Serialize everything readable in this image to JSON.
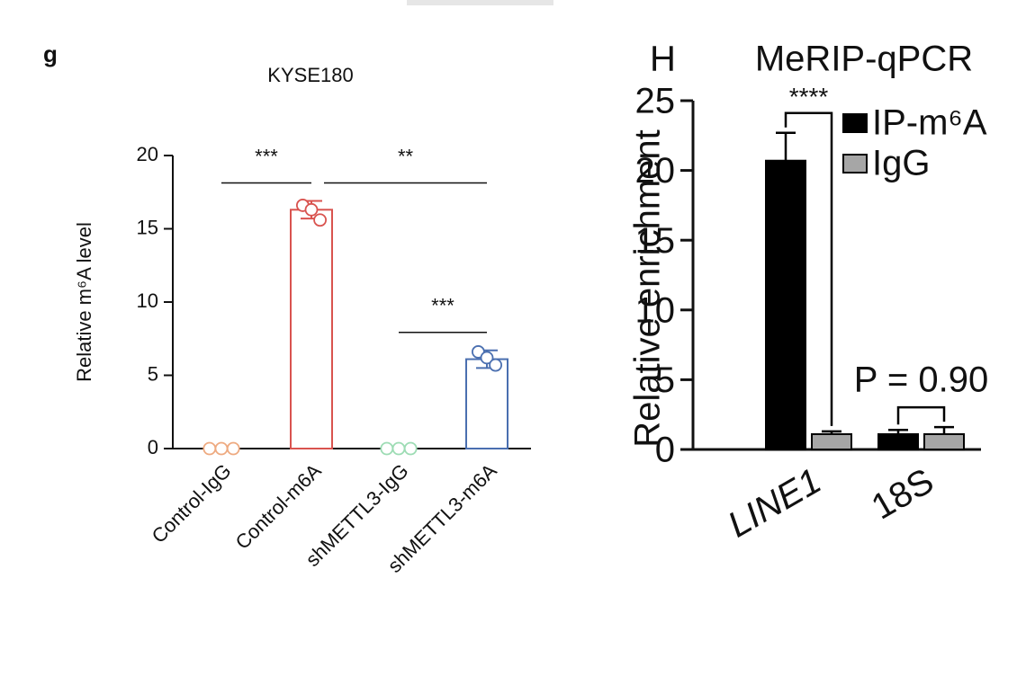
{
  "chart_data": [
    {
      "type": "bar",
      "panel_label": "g",
      "title": "KYSE180",
      "ylabel": "Relative m⁶A level",
      "categories": [
        "Control-IgG",
        "Control-m6A",
        "shMETTL3-IgG",
        "shMETTL3-m6A"
      ],
      "values": [
        0,
        16.3,
        0,
        6.1
      ],
      "errors": [
        0,
        0.6,
        0,
        0.6
      ],
      "points": [
        [
          0,
          0,
          0
        ],
        [
          16.6,
          16.3,
          15.6
        ],
        [
          0,
          0,
          0
        ],
        [
          6.6,
          6.2,
          5.7
        ]
      ],
      "colors": [
        "#eeaa80",
        "#d9534f",
        "#9ddcb4",
        "#4a6fb0"
      ],
      "ylim": [
        0,
        20
      ],
      "yticks": [
        0,
        5,
        10,
        15,
        20
      ],
      "annotations": [
        {
          "text": "***",
          "from": 0,
          "to": 1
        },
        {
          "text": "**",
          "from": 1,
          "to": 3
        },
        {
          "text": "***",
          "from": 2,
          "to": 3
        }
      ]
    },
    {
      "type": "grouped_bar",
      "panel_label": "H",
      "title": "MeRIP-qPCR",
      "ylabel": "Relative enrichment",
      "categories": [
        "LINE1",
        "18S"
      ],
      "series": [
        {
          "name": "IP-m⁶A",
          "color": "#000000",
          "values": [
            20.7,
            1.1
          ],
          "errors": [
            2.0,
            0.3
          ]
        },
        {
          "name": "IgG",
          "color": "#a6a6a6",
          "values": [
            1.1,
            1.1
          ],
          "errors": [
            0.2,
            0.5
          ]
        }
      ],
      "ylim": [
        0,
        25
      ],
      "yticks": [
        0,
        5,
        10,
        15,
        20,
        25
      ],
      "legend": "upper right",
      "annotations": [
        {
          "text": "****",
          "category": 0
        },
        {
          "text": "P = 0.90",
          "category": 1
        }
      ]
    }
  ]
}
